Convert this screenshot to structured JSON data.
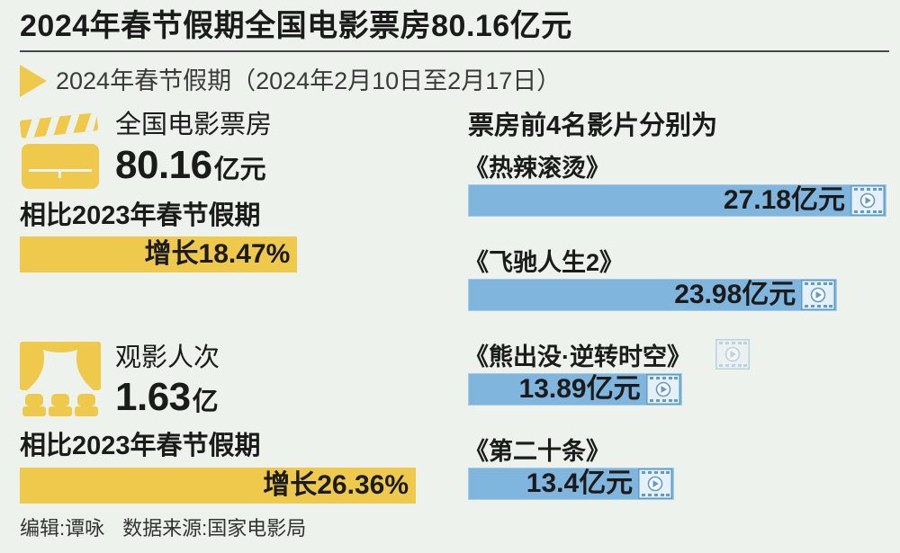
{
  "title": "2024年春节假期全国电影票房80.16亿元",
  "subtitle": "2024年春节假期（2024年2月10日至2月17日）",
  "stats": [
    {
      "icon": "clapperboard-icon",
      "value": "80.16",
      "unit": "亿元",
      "compare_label": "相比2023年春节假期"
    },
    {
      "icon": "theater-curtain-icon",
      "value": "1.63",
      "unit": "亿",
      "compare_label": "相比2023年春节假期"
    }
  ],
  "footer": {
    "editor": "编辑:谭咏",
    "source": "数据来源:国家电影局"
  },
  "colors": {
    "background": "#eef2ec",
    "yellow": "#efc94b",
    "blue": "#80b5dd",
    "text": "#1b1b1b"
  },
  "chart_data": [
    {
      "type": "bar",
      "orientation": "horizontal",
      "title": "票房前4名影片分别为",
      "categories": [
        "《热辣滚烫》",
        "《飞驰人生2》",
        "《熊出没·逆转时空》",
        "《第二十条》"
      ],
      "values": [
        27.18,
        23.98,
        13.89,
        13.4
      ],
      "unit": "亿元",
      "icon": "film-play-icon"
    },
    {
      "type": "bar",
      "orientation": "horizontal",
      "categories": [
        "全国电影票房",
        "观影人次"
      ],
      "values": [
        18.47,
        26.36
      ],
      "value_prefix": "增长",
      "unit": "%"
    }
  ]
}
